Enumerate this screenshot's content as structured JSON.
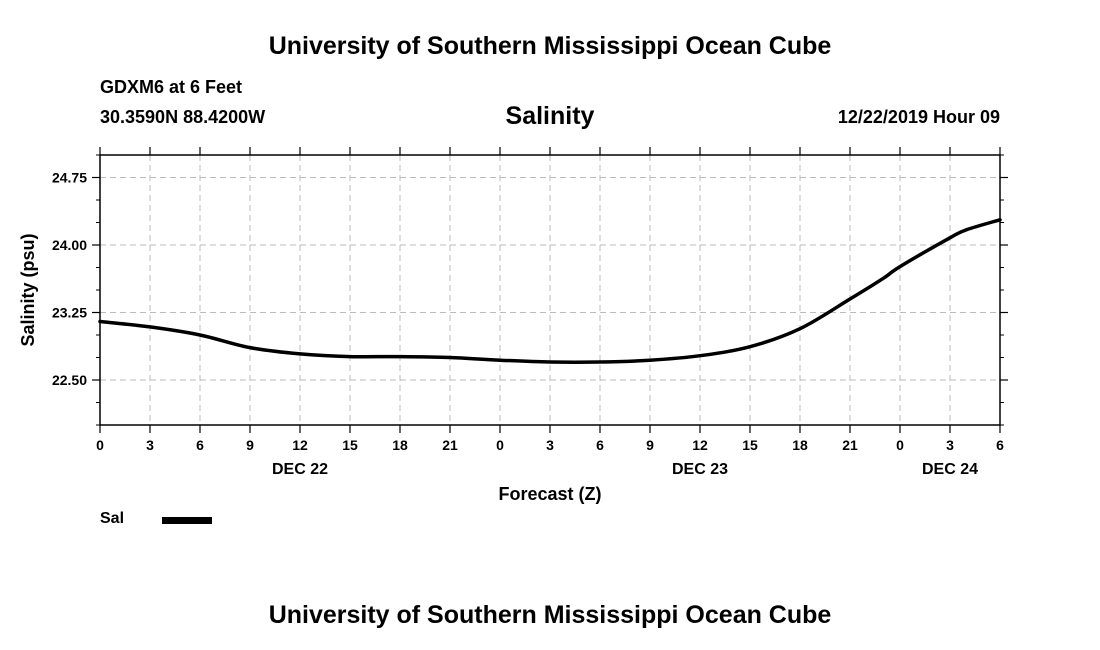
{
  "header": {
    "title": "University of Southern Mississippi Ocean Cube",
    "station": "GDXM6 at 6 Feet",
    "coords": "30.3590N 88.4200W",
    "variable": "Salinity",
    "date": "12/22/2019 Hour 09"
  },
  "footer": {
    "title": "University of Southern Mississippi Ocean Cube"
  },
  "legend": {
    "label": "Sal"
  },
  "chart_data": {
    "type": "line",
    "title": "Salinity",
    "xlabel": "Forecast (Z)",
    "ylabel": "Salinity (psu)",
    "x_unit": "hours since DEC 22 00Z",
    "xlim": [
      0,
      54
    ],
    "ylim": [
      22.0,
      25.0
    ],
    "y_ticks": [
      22.5,
      23.25,
      24.0,
      24.75
    ],
    "y_tick_labels": [
      "22.50",
      "23.25",
      "24.00",
      "24.75"
    ],
    "x_ticks": [
      0,
      3,
      6,
      9,
      12,
      15,
      18,
      21,
      24,
      27,
      30,
      33,
      36,
      39,
      42,
      45,
      48,
      51,
      54
    ],
    "x_tick_labels": [
      "0",
      "3",
      "6",
      "9",
      "12",
      "15",
      "18",
      "21",
      "0",
      "3",
      "6",
      "9",
      "12",
      "15",
      "18",
      "21",
      "0",
      "3",
      "6"
    ],
    "day_labels": [
      {
        "x": 12,
        "label": "DEC 22"
      },
      {
        "x": 36,
        "label": "DEC 23"
      },
      {
        "x": 51,
        "label": "DEC 24"
      }
    ],
    "grid": true,
    "series": [
      {
        "name": "Sal",
        "color": "#000000",
        "x": [
          0,
          3,
          6,
          9,
          12,
          15,
          18,
          21,
          24,
          27,
          30,
          33,
          36,
          39,
          42,
          45,
          47,
          48,
          51,
          52,
          54
        ],
        "values": [
          23.15,
          23.09,
          23.0,
          22.86,
          22.79,
          22.76,
          22.76,
          22.75,
          22.72,
          22.7,
          22.7,
          22.72,
          22.77,
          22.87,
          23.07,
          23.4,
          23.63,
          23.76,
          24.08,
          24.17,
          24.28
        ]
      }
    ]
  }
}
